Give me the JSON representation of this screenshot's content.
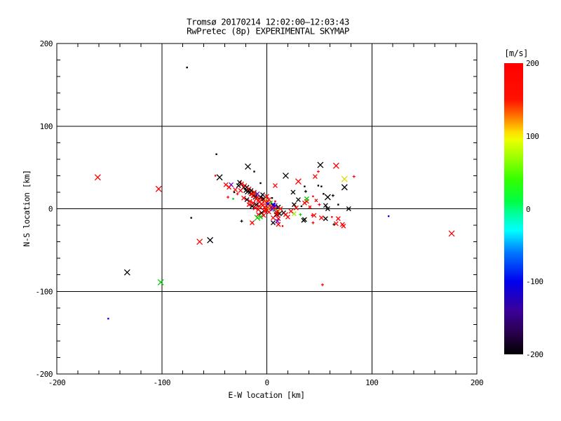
{
  "title": {
    "line1": "Tromsø 20170214 12:02:00–12:03:43",
    "line2": "RwPretec (8p) EXPERIMENTAL SKYMAP"
  },
  "axes": {
    "x_label": "E-W location [km]",
    "y_label": "N-S location [km]",
    "x_ticks": [
      "-200",
      "-100",
      "0",
      "100",
      "200"
    ],
    "y_ticks": [
      "200",
      "100",
      "0",
      "-100",
      "-200"
    ],
    "x_tick_values": [
      -200,
      -100,
      0,
      100,
      200
    ],
    "y_tick_values": [
      200,
      100,
      0,
      -100,
      -200
    ],
    "grid_values": [
      -100,
      0,
      100
    ],
    "minor_step": 20
  },
  "colorbar": {
    "unit": "[m/s]",
    "tick_labels": [
      "200",
      "100",
      "0",
      "-100",
      "-200"
    ],
    "tick_values": [
      200,
      100,
      0,
      -100,
      -200
    ],
    "min": -200,
    "max": 200,
    "stops": [
      {
        "p": 0.0,
        "c": "#ff0000"
      },
      {
        "p": 0.125,
        "c": "#ff1100"
      },
      {
        "p": 0.175,
        "c": "#ff6600"
      },
      {
        "p": 0.2375,
        "c": "#ffdd00"
      },
      {
        "p": 0.2625,
        "c": "#eeff00"
      },
      {
        "p": 0.325,
        "c": "#99ff00"
      },
      {
        "p": 0.4,
        "c": "#33ff00"
      },
      {
        "p": 0.475,
        "c": "#00ff44"
      },
      {
        "p": 0.525,
        "c": "#00ffaa"
      },
      {
        "p": 0.575,
        "c": "#00ffff"
      },
      {
        "p": 0.65,
        "c": "#0077ff"
      },
      {
        "p": 0.75,
        "c": "#0000ee"
      },
      {
        "p": 0.85,
        "c": "#3b0099"
      },
      {
        "p": 0.925,
        "c": "#2a004d"
      },
      {
        "p": 1.0,
        "c": "#000000"
      }
    ]
  },
  "chart_data": {
    "type": "scatter",
    "title": "Tromsø 20170214 12:02:00–12:03:43 — RwPretec (8p) EXPERIMENTAL SKYMAP",
    "xlabel": "E-W location [km]",
    "ylabel": "N-S location [km]",
    "xlim": [
      -200,
      200
    ],
    "ylim": [
      -200,
      200
    ],
    "grid": true,
    "legend": "colorbar right, velocity [m/s], range -200..200",
    "marker_colors": {
      "r": "#ff0000",
      "k": "#000000",
      "g": "#00cc00",
      "yg": "#99ee00",
      "y": "#dddd00",
      "o": "#ff8800",
      "pu": "#6600cc",
      "b": "#0000ff",
      "cy": "#00bbbb"
    },
    "points": [
      [
        -76,
        171,
        "k",
        "d"
      ],
      [
        -161,
        38,
        "r",
        "x4"
      ],
      [
        -103,
        24,
        "r",
        "x4"
      ],
      [
        -48,
        66,
        "k",
        "d"
      ],
      [
        -133,
        -77,
        "k",
        "x4"
      ],
      [
        -101,
        -89,
        "g",
        "x4"
      ],
      [
        -151,
        -133,
        "b",
        "d"
      ],
      [
        -64,
        -40,
        "r",
        "x4"
      ],
      [
        -54,
        -38,
        "k",
        "x4"
      ],
      [
        -72,
        -11,
        "k",
        "d"
      ],
      [
        116,
        -9,
        "b",
        "d"
      ],
      [
        176,
        -30,
        "r",
        "x4"
      ],
      [
        53,
        -92,
        "r",
        "p2"
      ],
      [
        -24,
        -15,
        "k",
        "p2"
      ],
      [
        -18,
        51,
        "k",
        "x4"
      ],
      [
        51,
        53,
        "k",
        "x4"
      ],
      [
        66,
        52,
        "r",
        "x4"
      ],
      [
        74,
        36,
        "y",
        "x4"
      ],
      [
        83,
        39,
        "r",
        "p2"
      ],
      [
        74,
        26,
        "k",
        "x4"
      ],
      [
        18,
        40,
        "k",
        "x4"
      ],
      [
        30,
        33,
        "r",
        "x4"
      ],
      [
        8,
        28,
        "r",
        "x3"
      ],
      [
        36,
        27,
        "k",
        "d"
      ],
      [
        49,
        45,
        "r",
        "p2"
      ],
      [
        46,
        39,
        "r",
        "x3"
      ],
      [
        -12,
        45,
        "k",
        "d"
      ],
      [
        -25,
        32,
        "r",
        "d"
      ],
      [
        -6,
        31,
        "k",
        "d"
      ],
      [
        -49,
        40,
        "r",
        "d"
      ],
      [
        -45,
        38,
        "k",
        "x4"
      ],
      [
        -39,
        29,
        "r",
        "x3"
      ],
      [
        -34,
        29,
        "pu",
        "x3"
      ],
      [
        -36,
        26,
        "r",
        "x3"
      ],
      [
        -27,
        28,
        "k",
        "x3"
      ],
      [
        -22,
        26,
        "k",
        "x3"
      ],
      [
        -30,
        23,
        "r",
        "x3"
      ],
      [
        -25,
        22,
        "r",
        "x3"
      ],
      [
        -20,
        22,
        "k",
        "x3"
      ],
      [
        -18,
        21,
        "k",
        "x4"
      ],
      [
        -37,
        14,
        "r",
        "p2"
      ],
      [
        -32,
        12,
        "g",
        "d"
      ],
      [
        -15,
        18,
        "r",
        "x3"
      ],
      [
        -12,
        16,
        "r",
        "x3"
      ],
      [
        -12,
        19,
        "g",
        "x3"
      ],
      [
        -9,
        14,
        "r",
        "x3"
      ],
      [
        -6,
        14,
        "k",
        "x3"
      ],
      [
        -5,
        11,
        "r",
        "x3"
      ],
      [
        -2,
        9,
        "r",
        "x3"
      ],
      [
        0,
        7,
        "r",
        "x3"
      ],
      [
        1,
        5,
        "r",
        "x3"
      ],
      [
        3,
        4,
        "r",
        "x3"
      ],
      [
        6,
        4,
        "k",
        "x3"
      ],
      [
        4,
        1,
        "r",
        "x3"
      ],
      [
        6,
        0,
        "r",
        "x3"
      ],
      [
        8,
        0,
        "r",
        "x3"
      ],
      [
        11,
        2,
        "k",
        "x3"
      ],
      [
        13,
        0,
        "r",
        "x3"
      ],
      [
        8,
        4,
        "pu",
        "x3"
      ],
      [
        6,
        5,
        "b",
        "x3"
      ],
      [
        11,
        -3,
        "o",
        "x3"
      ],
      [
        1,
        0,
        "g",
        "p2"
      ],
      [
        -2,
        -3,
        "r",
        "x3"
      ],
      [
        -5,
        -5,
        "k",
        "x3"
      ],
      [
        -8,
        -7,
        "r",
        "x3"
      ],
      [
        -9,
        -11,
        "g",
        "x4"
      ],
      [
        6,
        -11,
        "r",
        "x3"
      ],
      [
        9,
        -7,
        "k",
        "x3"
      ],
      [
        11,
        -12,
        "r",
        "x3"
      ],
      [
        16,
        -5,
        "k",
        "x3"
      ],
      [
        18,
        -7,
        "r",
        "x3"
      ],
      [
        -14,
        -17,
        "r",
        "x3"
      ],
      [
        6,
        -17,
        "k",
        "x3"
      ],
      [
        11,
        -19,
        "r",
        "x3"
      ],
      [
        15,
        -21,
        "r",
        "d"
      ],
      [
        -21,
        28,
        "r",
        "x3"
      ],
      [
        -19,
        26,
        "k",
        "x3"
      ],
      [
        -17,
        24,
        "r",
        "x3"
      ],
      [
        -16,
        20,
        "k",
        "x3"
      ],
      [
        -14,
        18,
        "r",
        "x3"
      ],
      [
        -13,
        16,
        "r",
        "x3"
      ],
      [
        -11,
        14,
        "k",
        "x3"
      ],
      [
        -10,
        12,
        "r",
        "x3"
      ],
      [
        -8,
        10,
        "r",
        "x3"
      ],
      [
        -7,
        8,
        "r",
        "x4"
      ],
      [
        -5,
        6,
        "r",
        "x3"
      ],
      [
        -4,
        4,
        "r",
        "x3"
      ],
      [
        -2,
        2,
        "r",
        "x4"
      ],
      [
        -1,
        0,
        "r",
        "x3"
      ],
      [
        0,
        -2,
        "r",
        "x3"
      ],
      [
        2,
        -4,
        "r",
        "x3"
      ],
      [
        -3,
        12,
        "k",
        "x3"
      ],
      [
        -9,
        18,
        "pu",
        "x3"
      ],
      [
        -12,
        20,
        "r",
        "x3"
      ],
      [
        -15,
        22,
        "k",
        "x3"
      ],
      [
        -24,
        30,
        "r",
        "x3"
      ],
      [
        -26,
        32,
        "k",
        "x3"
      ],
      [
        3,
        2,
        "o",
        "x3"
      ],
      [
        5,
        0,
        "pu",
        "x3"
      ],
      [
        7,
        -2,
        "cy",
        "x2"
      ],
      [
        9,
        -4,
        "r",
        "x3"
      ],
      [
        12,
        -6,
        "k",
        "x3"
      ],
      [
        1,
        6,
        "b",
        "x2"
      ],
      [
        4,
        8,
        "g",
        "x2"
      ],
      [
        -1,
        10,
        "o",
        "x2"
      ],
      [
        -3,
        -8,
        "r",
        "x3"
      ],
      [
        -6,
        -10,
        "g",
        "x3"
      ],
      [
        0,
        15,
        "r",
        "x3"
      ],
      [
        -4,
        17,
        "k",
        "x3"
      ],
      [
        2,
        11,
        "r",
        "x3"
      ],
      [
        -7,
        3,
        "r",
        "x3"
      ],
      [
        -10,
        5,
        "k",
        "x3"
      ],
      [
        -13,
        7,
        "r",
        "x3"
      ],
      [
        -16,
        9,
        "r",
        "x3"
      ],
      [
        -19,
        11,
        "k",
        "x3"
      ],
      [
        -22,
        13,
        "r",
        "x3"
      ],
      [
        -11,
        1,
        "r",
        "x3"
      ],
      [
        -8,
        -1,
        "r",
        "x3"
      ],
      [
        -14,
        3,
        "k",
        "x3"
      ],
      [
        -17,
        5,
        "r",
        "x3"
      ],
      [
        5,
        13,
        "k",
        "d"
      ],
      [
        8,
        9,
        "r",
        "d"
      ],
      [
        -28,
        18,
        "r",
        "p2"
      ],
      [
        -31,
        20,
        "k",
        "d"
      ],
      [
        25,
        20,
        "k",
        "x3"
      ],
      [
        30,
        11,
        "k",
        "x3"
      ],
      [
        26,
        5,
        "k",
        "x3"
      ],
      [
        36,
        7,
        "r",
        "x3"
      ],
      [
        38,
        9,
        "r",
        "x3"
      ],
      [
        38,
        12,
        "g",
        "x3"
      ],
      [
        37,
        21,
        "k",
        "p2"
      ],
      [
        49,
        28,
        "k",
        "d"
      ],
      [
        52,
        27,
        "k",
        "d"
      ],
      [
        58,
        14,
        "k",
        "x4"
      ],
      [
        63,
        16,
        "k",
        "p2"
      ],
      [
        50,
        5,
        "r",
        "p2"
      ],
      [
        56,
        4,
        "k",
        "x3"
      ],
      [
        68,
        5,
        "k",
        "d"
      ],
      [
        78,
        0,
        "k",
        "x3"
      ],
      [
        58,
        0,
        "k",
        "x3"
      ],
      [
        26,
        -6,
        "yg",
        "x3"
      ],
      [
        32,
        -7,
        "g",
        "p2"
      ],
      [
        36,
        -13,
        "k",
        "x3"
      ],
      [
        43,
        -8,
        "r",
        "d"
      ],
      [
        52,
        -11,
        "r",
        "x3"
      ],
      [
        56,
        -12,
        "k",
        "x3"
      ],
      [
        62,
        -10,
        "r",
        "d"
      ],
      [
        68,
        -12,
        "r",
        "x3"
      ],
      [
        44,
        -17,
        "r",
        "p2"
      ],
      [
        64,
        -19,
        "k",
        "p2"
      ],
      [
        72,
        -19,
        "r",
        "x3"
      ],
      [
        10,
        -7,
        "r",
        "x3"
      ],
      [
        35,
        -14,
        "k",
        "x3"
      ],
      [
        45,
        -8,
        "r",
        "x3"
      ],
      [
        66,
        -18,
        "r",
        "x3"
      ],
      [
        73,
        -21,
        "r",
        "x3"
      ],
      [
        10,
        -15,
        "pu",
        "x3"
      ],
      [
        20,
        -10,
        "r",
        "x3"
      ],
      [
        23,
        -3,
        "r",
        "x3"
      ],
      [
        28,
        1,
        "r",
        "x3"
      ],
      [
        33,
        3,
        "k",
        "d"
      ],
      [
        41,
        2,
        "r",
        "x2"
      ],
      [
        47,
        10,
        "r",
        "x2"
      ],
      [
        44,
        15,
        "r",
        "d"
      ],
      [
        54,
        18,
        "k",
        "d"
      ]
    ]
  }
}
